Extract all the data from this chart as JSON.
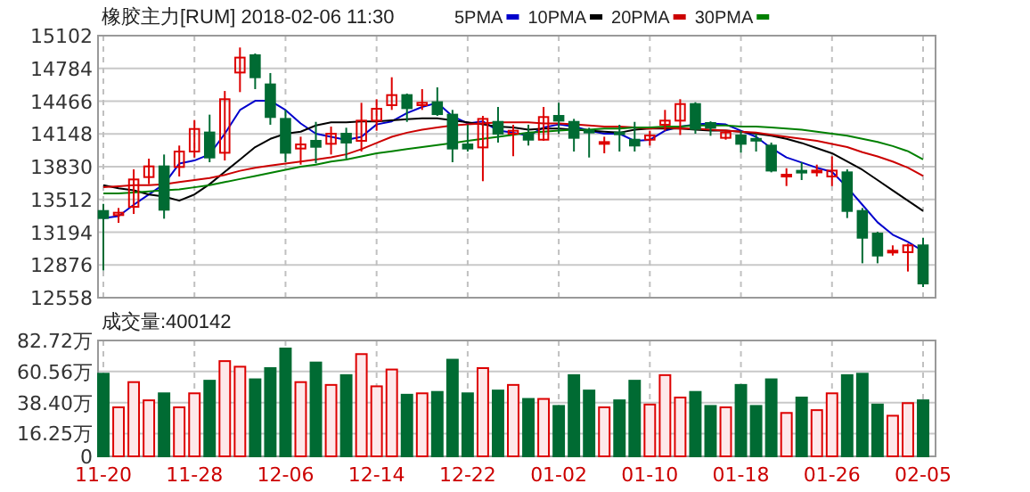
{
  "chart_data": [
    {
      "type": "candlestick",
      "title": "橡胶主力[RUM] 2018-02-06 11:30",
      "categories": [
        null,
        null,
        null,
        null,
        null,
        null,
        null,
        null,
        null,
        null,
        null,
        null,
        null,
        null,
        null,
        null,
        null,
        null,
        null,
        null,
        null,
        null,
        null,
        null,
        null,
        null,
        null,
        null,
        null,
        null,
        null,
        null,
        null,
        null,
        null,
        null,
        null,
        null,
        null,
        null,
        null,
        null,
        null,
        null,
        null,
        null,
        null,
        null,
        null,
        null,
        null,
        null,
        null,
        null,
        null
      ],
      "ohlc": [
        [
          13400,
          13469,
          12823,
          13331
        ],
        [
          13360,
          13429,
          13285,
          13383
        ],
        [
          13440,
          13804,
          13371,
          13706
        ],
        [
          13729,
          13908,
          13660,
          13833
        ],
        [
          13833,
          13948,
          13325,
          13412
        ],
        [
          13827,
          14035,
          13735,
          13977
        ],
        [
          13977,
          14283,
          13919,
          14196
        ],
        [
          14162,
          14335,
          13873,
          13919
        ],
        [
          13965,
          14565,
          13890,
          14485
        ],
        [
          14744,
          14987,
          14554,
          14889
        ],
        [
          14912,
          14929,
          14583,
          14698
        ],
        [
          14629,
          14739,
          14237,
          14312
        ],
        [
          14294,
          14381,
          13873,
          13965
        ],
        [
          14006,
          14121,
          13850,
          14046
        ],
        [
          14081,
          14265,
          13862,
          14023
        ],
        [
          14052,
          14219,
          13948,
          14150
        ],
        [
          14150,
          14208,
          13908,
          14064
        ],
        [
          14081,
          14450,
          13977,
          14277
        ],
        [
          14277,
          14485,
          14179,
          14392
        ],
        [
          14427,
          14698,
          14381,
          14525
        ],
        [
          14525,
          14540,
          14265,
          14398
        ],
        [
          14427,
          14583,
          14381,
          14450
        ],
        [
          14456,
          14600,
          14323,
          14340
        ],
        [
          14335,
          14381,
          13873,
          14006
        ],
        [
          14046,
          14237,
          13977,
          14006
        ],
        [
          14017,
          14323,
          13689,
          14294
        ],
        [
          14265,
          14410,
          14064,
          14150
        ],
        [
          14150,
          14237,
          13931,
          14179
        ],
        [
          14150,
          14237,
          14035,
          14092
        ],
        [
          14092,
          14410,
          14081,
          14312
        ],
        [
          14323,
          14450,
          14150,
          14277
        ],
        [
          14265,
          14294,
          13977,
          14110
        ],
        [
          14179,
          14208,
          13919,
          14162
        ],
        [
          14058,
          14121,
          13960,
          14069
        ],
        [
          14162,
          14237,
          13977,
          14150
        ],
        [
          14092,
          14265,
          13977,
          14035
        ],
        [
          14092,
          14179,
          14035,
          14133
        ],
        [
          14237,
          14381,
          14179,
          14277
        ],
        [
          14277,
          14485,
          14138,
          14438
        ],
        [
          14438,
          14456,
          14150,
          14196
        ],
        [
          14254,
          14270,
          14130,
          14208
        ],
        [
          14110,
          14179,
          14092,
          14162
        ],
        [
          14133,
          14179,
          13965,
          14052
        ],
        [
          14100,
          14150,
          13977,
          14090
        ],
        [
          14035,
          14064,
          13775,
          13792
        ],
        [
          13735,
          13815,
          13642,
          13752
        ],
        [
          13790,
          13873,
          13700,
          13775
        ],
        [
          13780,
          13850,
          13735,
          13792
        ],
        [
          13735,
          13930,
          13642,
          13792
        ],
        [
          13775,
          13804,
          13331,
          13400
        ],
        [
          13400,
          13429,
          12892,
          13140
        ],
        [
          13181,
          13198,
          12892,
          12967
        ],
        [
          13000,
          13066,
          12967,
          13014
        ],
        [
          13000,
          13083,
          12812,
          13066
        ],
        [
          13066,
          13140,
          12662,
          12696
        ]
      ],
      "colors": [
        "#006b33",
        "#dd0000",
        "#dd0000",
        "#dd0000",
        "#006b33",
        "#dd0000",
        "#dd0000",
        "#006b33",
        "#dd0000",
        "#dd0000",
        "#006b33",
        "#006b33",
        "#006b33",
        "#dd0000",
        "#006b33",
        "#dd0000",
        "#006b33",
        "#dd0000",
        "#dd0000",
        "#dd0000",
        "#006b33",
        "#dd0000",
        "#006b33",
        "#006b33",
        "#006b33",
        "#dd0000",
        "#006b33",
        "#dd0000",
        "#006b33",
        "#dd0000",
        "#006b33",
        "#006b33",
        "#006b33",
        "#dd0000",
        "#006b33",
        "#006b33",
        "#dd0000",
        "#dd0000",
        "#dd0000",
        "#006b33",
        "#006b33",
        "#dd0000",
        "#006b33",
        "#006b33",
        "#006b33",
        "#dd0000",
        "#006b33",
        "#dd0000",
        "#dd0000",
        "#006b33",
        "#006b33",
        "#006b33",
        "#dd0000",
        "#dd0000",
        "#006b33"
      ],
      "series": [
        {
          "name": "5PMA",
          "type": "line",
          "color": "#0000cc",
          "values": [
            13330,
            13350,
            13460,
            13560,
            13660,
            13860,
            13890,
            13950,
            14150,
            14380,
            14470,
            14470,
            14380,
            14250,
            14150,
            14120,
            14090,
            14120,
            14240,
            14270,
            14350,
            14410,
            14450,
            14320,
            14250,
            14270,
            14180,
            14160,
            14130,
            14210,
            14240,
            14220,
            14180,
            14150,
            14150,
            14080,
            14090,
            14180,
            14220,
            14240,
            14250,
            14240,
            14180,
            14120,
            14010,
            13920,
            13870,
            13820,
            13780,
            13630,
            13460,
            13290,
            13170,
            13100,
            13010
          ]
        },
        {
          "name": "10PMA",
          "type": "line",
          "color": "#000000",
          "values": [
            13650,
            13620,
            13600,
            13560,
            13540,
            13500,
            13560,
            13660,
            13780,
            13900,
            14020,
            14100,
            14150,
            14170,
            14230,
            14260,
            14260,
            14270,
            14270,
            14280,
            14290,
            14300,
            14300,
            14280,
            14260,
            14240,
            14220,
            14210,
            14190,
            14200,
            14200,
            14190,
            14180,
            14170,
            14160,
            14190,
            14200,
            14200,
            14200,
            14190,
            14180,
            14180,
            14170,
            14150,
            14130,
            14100,
            14060,
            14010,
            13960,
            13880,
            13800,
            13700,
            13600,
            13500,
            13400
          ]
        },
        {
          "name": "20PMA",
          "type": "line",
          "color": "#cc0000",
          "values": [
            13630,
            13640,
            13650,
            13650,
            13660,
            13680,
            13700,
            13720,
            13750,
            13790,
            13820,
            13840,
            13860,
            13880,
            13900,
            13920,
            13950,
            14000,
            14060,
            14120,
            14160,
            14190,
            14210,
            14230,
            14240,
            14250,
            14260,
            14260,
            14260,
            14250,
            14250,
            14240,
            14230,
            14220,
            14220,
            14210,
            14200,
            14210,
            14200,
            14200,
            14190,
            14180,
            14170,
            14160,
            14140,
            14120,
            14100,
            14080,
            14050,
            14020,
            13970,
            13930,
            13880,
            13820,
            13740
          ]
        },
        {
          "name": "30PMA",
          "type": "line",
          "color": "#008000",
          "values": [
            13570,
            13570,
            13580,
            13590,
            13600,
            13610,
            13630,
            13650,
            13680,
            13710,
            13740,
            13770,
            13800,
            13830,
            13850,
            13880,
            13900,
            13930,
            13960,
            13980,
            14000,
            14020,
            14040,
            14060,
            14080,
            14100,
            14120,
            14140,
            14160,
            14170,
            14180,
            14190,
            14190,
            14200,
            14200,
            14210,
            14210,
            14220,
            14220,
            14230,
            14230,
            14230,
            14220,
            14220,
            14210,
            14200,
            14190,
            14170,
            14150,
            14130,
            14100,
            14070,
            14030,
            13980,
            13900
          ]
        }
      ],
      "ylim": [
        12558,
        15102
      ],
      "yticks": [
        12558,
        12876,
        13194,
        13512,
        13830,
        14148,
        14466,
        14784,
        15102
      ],
      "grid": true,
      "legend": "top"
    },
    {
      "type": "bar",
      "title": "成交量:400142",
      "categories": [
        "11-20",
        null,
        null,
        null,
        null,
        null,
        "11-28",
        null,
        null,
        null,
        null,
        null,
        "12-06",
        null,
        null,
        null,
        null,
        null,
        "12-14",
        null,
        null,
        null,
        null,
        null,
        "12-22",
        null,
        null,
        null,
        null,
        null,
        "01-02",
        null,
        null,
        null,
        null,
        null,
        "01-10",
        null,
        null,
        null,
        null,
        null,
        "01-18",
        null,
        null,
        null,
        null,
        null,
        "01-26",
        null,
        null,
        null,
        null,
        null,
        "02-05"
      ],
      "values": [
        59,
        35,
        53,
        40,
        45,
        35,
        45,
        54,
        68,
        64,
        55,
        63,
        77,
        53,
        67,
        51,
        58,
        73,
        50,
        62,
        44,
        45,
        46,
        69,
        45,
        63,
        47,
        51,
        41,
        41,
        36,
        58,
        47,
        35,
        40,
        54,
        37,
        58,
        42,
        46,
        36,
        35,
        51,
        36,
        55,
        31,
        42,
        33,
        45,
        58,
        59,
        37,
        29,
        38,
        40.0142
      ],
      "colors": [
        "#006b33",
        "#dd0000",
        "#dd0000",
        "#dd0000",
        "#006b33",
        "#dd0000",
        "#dd0000",
        "#006b33",
        "#dd0000",
        "#dd0000",
        "#006b33",
        "#006b33",
        "#006b33",
        "#dd0000",
        "#006b33",
        "#dd0000",
        "#006b33",
        "#dd0000",
        "#dd0000",
        "#dd0000",
        "#006b33",
        "#dd0000",
        "#006b33",
        "#006b33",
        "#006b33",
        "#dd0000",
        "#006b33",
        "#dd0000",
        "#006b33",
        "#dd0000",
        "#006b33",
        "#006b33",
        "#006b33",
        "#dd0000",
        "#006b33",
        "#006b33",
        "#dd0000",
        "#dd0000",
        "#dd0000",
        "#006b33",
        "#006b33",
        "#dd0000",
        "#006b33",
        "#006b33",
        "#006b33",
        "#dd0000",
        "#006b33",
        "#dd0000",
        "#dd0000",
        "#006b33",
        "#006b33",
        "#006b33",
        "#dd0000",
        "#dd0000",
        "#006b33"
      ],
      "ylim": [
        0,
        82.72
      ],
      "yticks": [
        0,
        {
          "value": 16.25,
          "label": "16.25万"
        },
        {
          "value": 38.4,
          "label": "38.40万"
        },
        {
          "value": 60.56,
          "label": "60.56万"
        },
        {
          "value": 82.72,
          "label": "82.72万"
        }
      ],
      "grid": true
    }
  ]
}
